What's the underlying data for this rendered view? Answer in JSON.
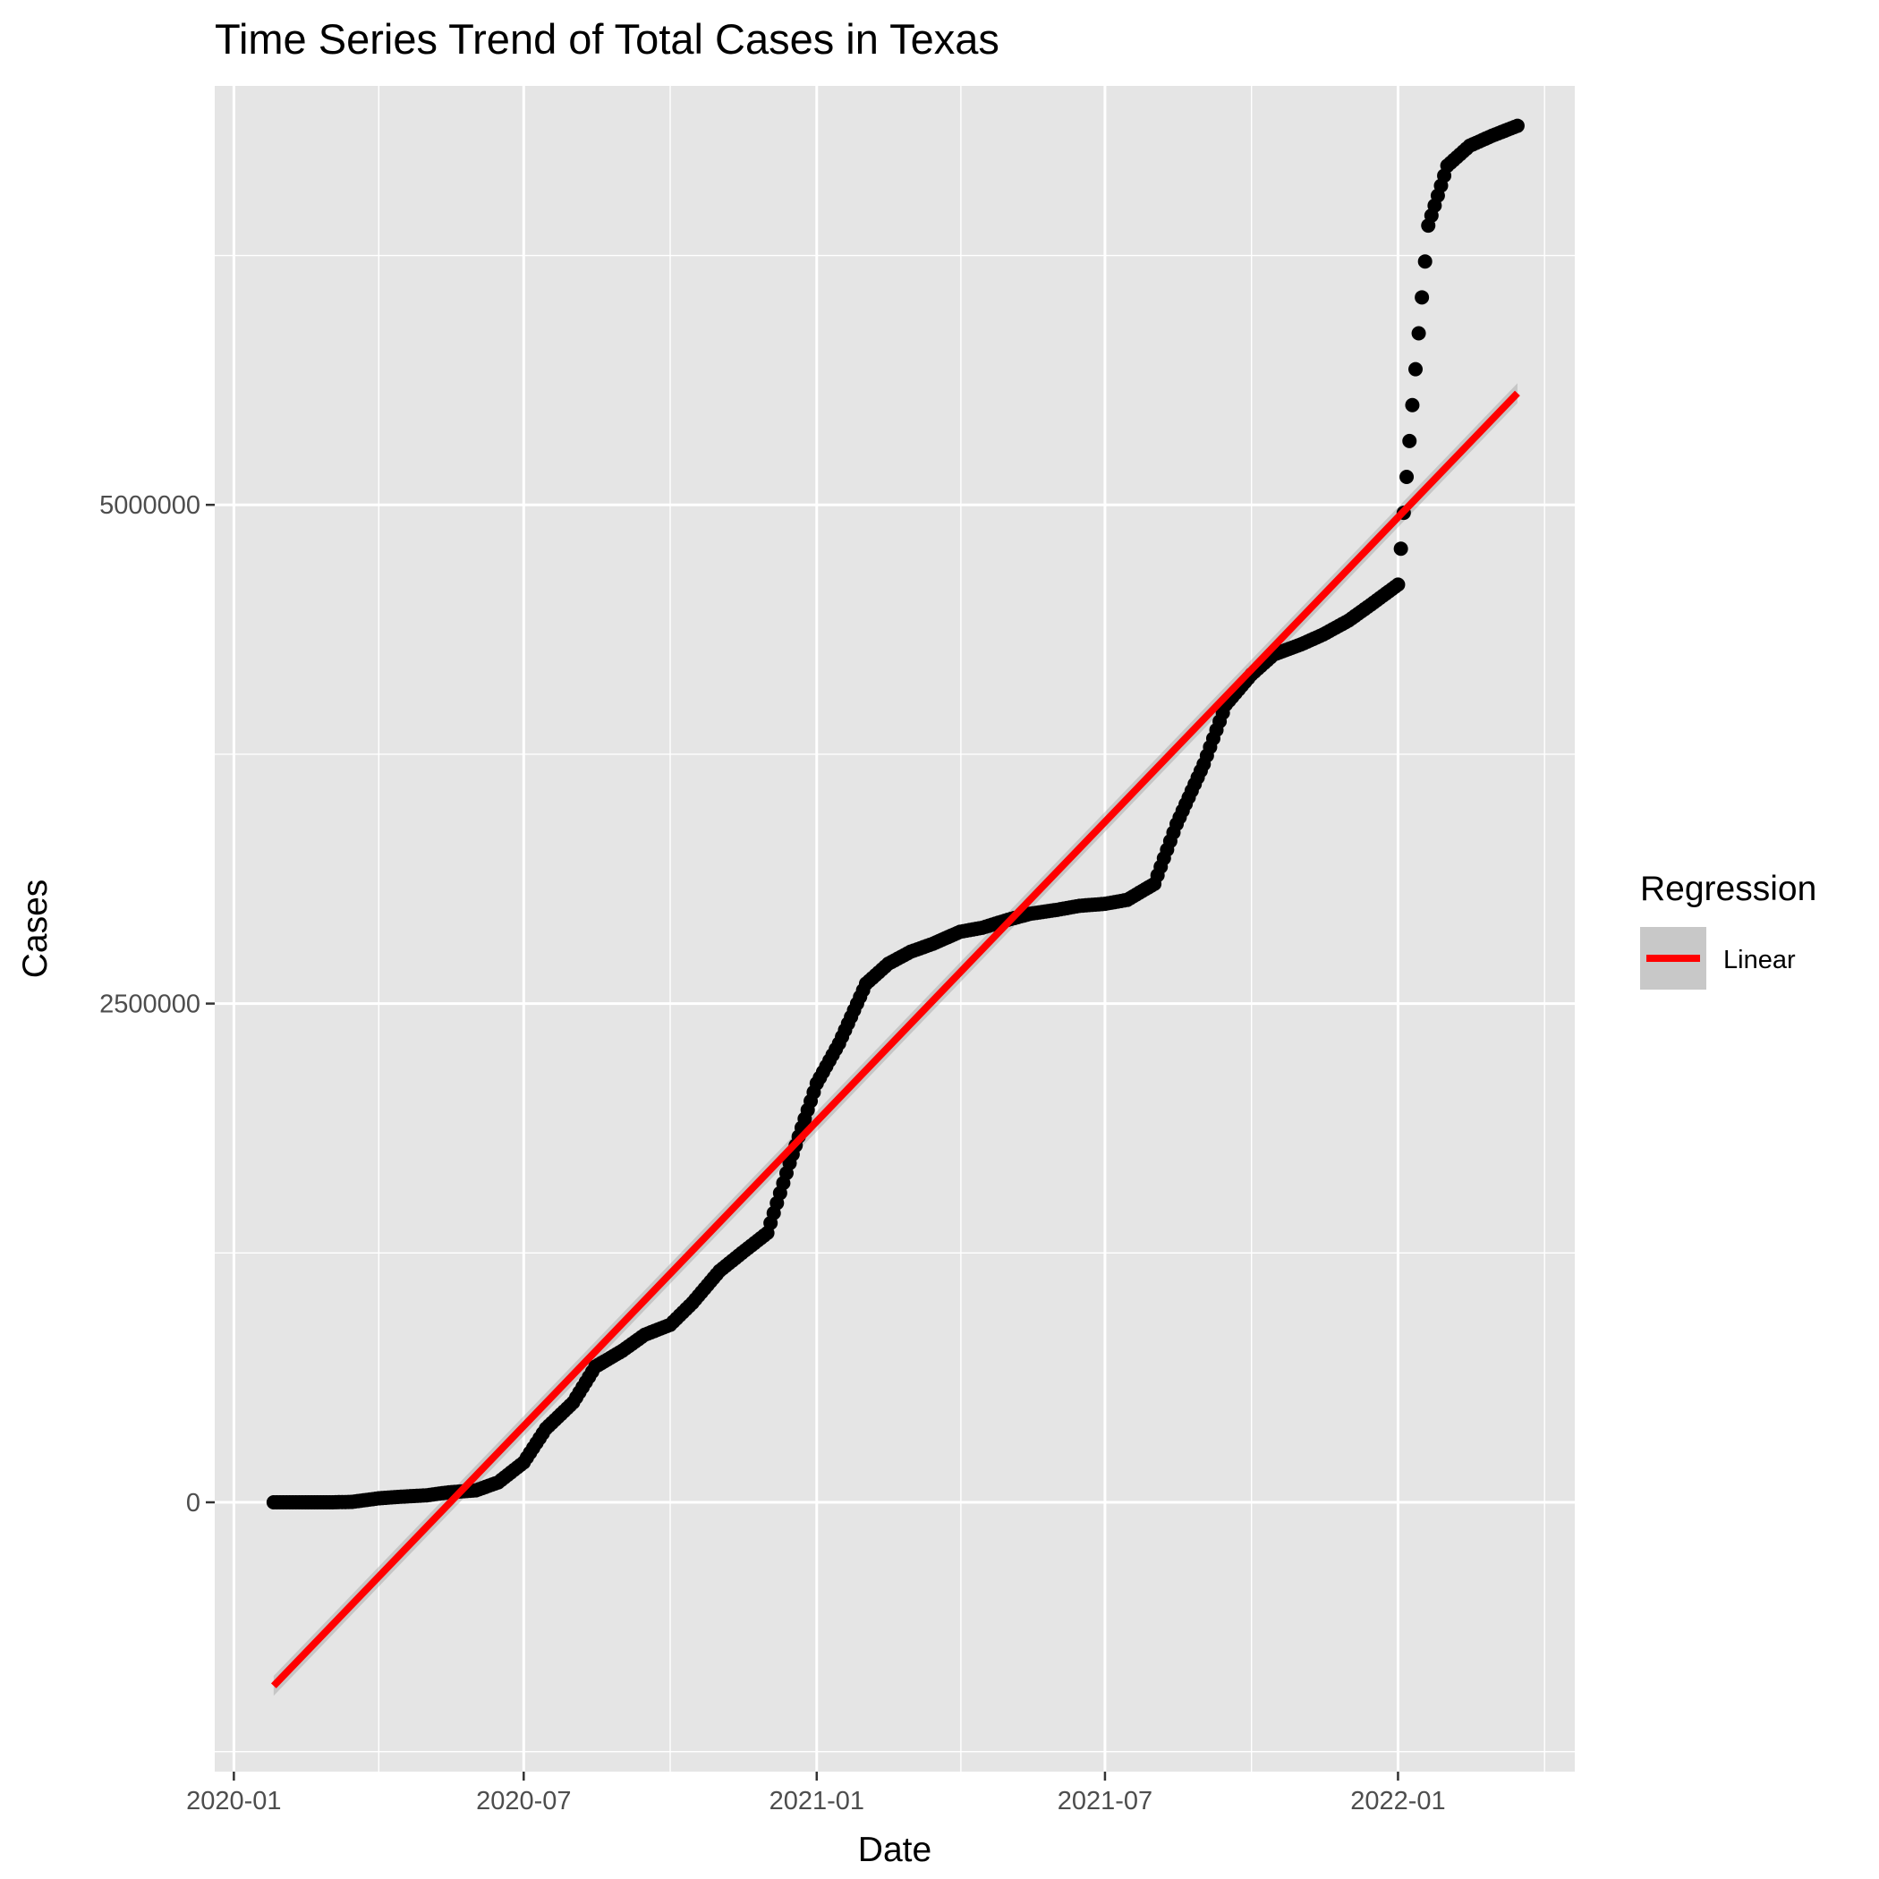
{
  "chart_data": {
    "type": "scatter",
    "title": "Time Series Trend of Total Cases in Texas",
    "xlabel": "Date",
    "ylabel": "Cases",
    "x_ticks": [
      "2020-01-01",
      "2020-07-01",
      "2021-01-01",
      "2021-07-01",
      "2022-01-01"
    ],
    "x_tick_labels": [
      "2020-01",
      "2020-07",
      "2021-01",
      "2021-07",
      "2022-01"
    ],
    "y_ticks": [
      0,
      2500000,
      5000000
    ],
    "y_tick_labels": [
      "0",
      "2500000",
      "5000000"
    ],
    "xlim": [
      "2019-12-20",
      "2022-04-22"
    ],
    "ylim": [
      -1350000,
      7100000
    ],
    "grid": true,
    "point_color": "#000000",
    "series": [
      {
        "x": [
          "2020-01-26",
          "2020-02-15",
          "2020-03-01",
          "2020-03-15",
          "2020-04-01",
          "2020-04-15",
          "2020-05-01",
          "2020-05-15",
          "2020-06-01",
          "2020-06-15",
          "2020-07-01",
          "2020-07-15",
          "2020-08-01",
          "2020-08-15",
          "2020-09-01",
          "2020-09-15",
          "2020-10-01",
          "2020-10-15",
          "2020-11-01",
          "2020-11-15",
          "2020-12-01",
          "2020-12-15",
          "2021-01-01",
          "2021-01-15",
          "2021-02-01",
          "2021-02-15",
          "2021-03-01",
          "2021-03-15",
          "2021-04-01",
          "2021-04-15",
          "2021-05-01",
          "2021-05-15",
          "2021-06-01",
          "2021-06-15",
          "2021-07-01",
          "2021-07-15",
          "2021-08-01",
          "2021-08-15",
          "2021-09-01",
          "2021-09-15",
          "2021-10-01",
          "2021-10-15",
          "2021-11-01",
          "2021-11-15",
          "2021-12-01",
          "2021-12-15",
          "2022-01-01",
          "2022-01-10",
          "2022-01-20",
          "2022-02-01",
          "2022-02-15",
          "2022-03-01",
          "2022-03-17"
        ],
        "y": [
          0,
          0,
          0,
          2000,
          20000,
          28000,
          35000,
          50000,
          60000,
          100000,
          200000,
          370000,
          500000,
          680000,
          760000,
          840000,
          890000,
          1000000,
          1160000,
          1250000,
          1350000,
          1700000,
          2100000,
          2300000,
          2600000,
          2700000,
          2760000,
          2800000,
          2860000,
          2880000,
          2920000,
          2950000,
          2970000,
          2990000,
          3000000,
          3020000,
          3100000,
          3400000,
          3700000,
          4000000,
          4150000,
          4250000,
          4300000,
          4350000,
          4420000,
          4500000,
          4600000,
          5500000,
          6400000,
          6700000,
          6800000,
          6850000,
          6900000
        ]
      }
    ],
    "regression": {
      "legend_title": "Regression",
      "label": "Linear",
      "color": "#ff0000",
      "x": [
        "2020-01-26",
        "2022-03-17"
      ],
      "y": [
        -920000,
        5560000
      ],
      "ci_halfwidth": 50000
    },
    "legend_position": "right"
  }
}
